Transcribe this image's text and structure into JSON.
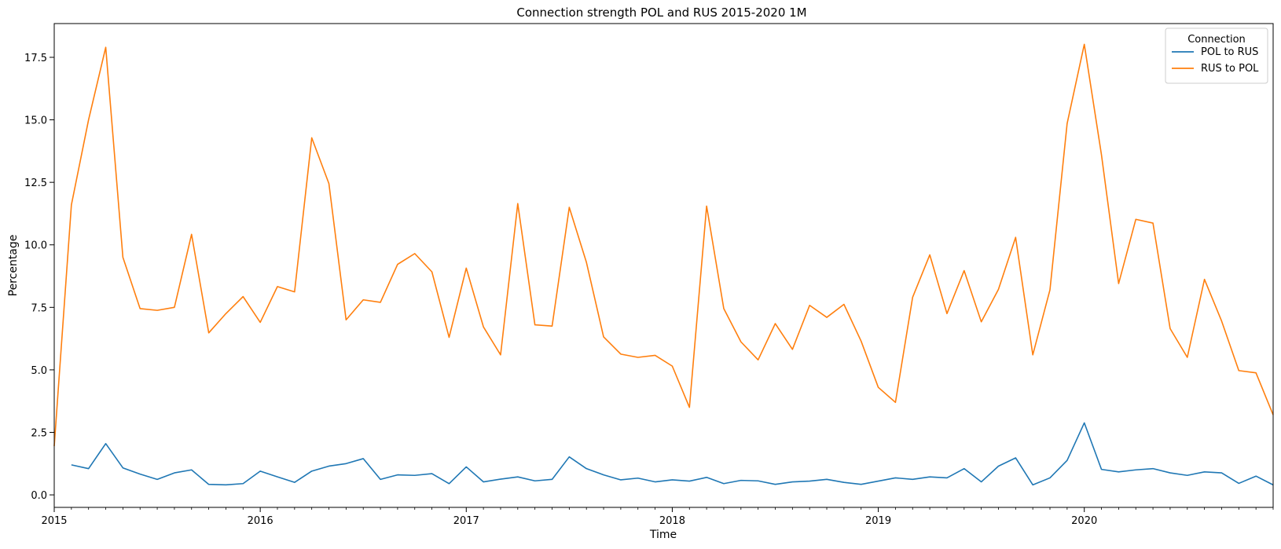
{
  "chart_data": {
    "type": "line",
    "title": "Connection strength POL and RUS 2015-2020 1M",
    "xlabel": "Time",
    "ylabel": "Percentage",
    "x_range": [
      "2015-01",
      "2020-12"
    ],
    "ylim": [
      -0.5,
      18.85
    ],
    "x_ticks": [
      "2015",
      "2016",
      "2017",
      "2018",
      "2019",
      "2020"
    ],
    "y_ticks": [
      0.0,
      2.5,
      5.0,
      7.5,
      10.0,
      12.5,
      15.0,
      17.5
    ],
    "y_tick_labels": [
      "0.0",
      "2.5",
      "5.0",
      "7.5",
      "10.0",
      "12.5",
      "15.0",
      "17.5"
    ],
    "grid": false,
    "legend": {
      "title": "Connection",
      "position": "top-right"
    },
    "x": [
      "2015-01",
      "2015-02",
      "2015-03",
      "2015-04",
      "2015-05",
      "2015-06",
      "2015-07",
      "2015-08",
      "2015-09",
      "2015-10",
      "2015-11",
      "2015-12",
      "2016-01",
      "2016-02",
      "2016-03",
      "2016-04",
      "2016-05",
      "2016-06",
      "2016-07",
      "2016-08",
      "2016-09",
      "2016-10",
      "2016-11",
      "2016-12",
      "2017-01",
      "2017-02",
      "2017-03",
      "2017-04",
      "2017-05",
      "2017-06",
      "2017-07",
      "2017-08",
      "2017-09",
      "2017-10",
      "2017-11",
      "2017-12",
      "2018-01",
      "2018-02",
      "2018-03",
      "2018-04",
      "2018-05",
      "2018-06",
      "2018-07",
      "2018-08",
      "2018-09",
      "2018-10",
      "2018-11",
      "2018-12",
      "2019-01",
      "2019-02",
      "2019-03",
      "2019-04",
      "2019-05",
      "2019-06",
      "2019-07",
      "2019-08",
      "2019-09",
      "2019-10",
      "2019-11",
      "2019-12",
      "2020-01",
      "2020-02",
      "2020-03",
      "2020-04",
      "2020-05",
      "2020-06",
      "2020-07",
      "2020-08",
      "2020-09",
      "2020-10",
      "2020-11",
      "2020-12"
    ],
    "series": [
      {
        "name": "POL to RUS",
        "color": "#1f77b4",
        "values": [
          null,
          1.2,
          1.05,
          2.05,
          1.08,
          0.83,
          0.62,
          0.88,
          1.0,
          0.42,
          0.4,
          0.45,
          0.95,
          0.72,
          0.5,
          0.95,
          1.15,
          1.25,
          1.45,
          0.62,
          0.8,
          0.78,
          0.85,
          0.45,
          1.12,
          0.52,
          0.63,
          0.72,
          0.56,
          0.62,
          1.52,
          1.05,
          0.8,
          0.6,
          0.67,
          0.52,
          0.6,
          0.55,
          0.7,
          0.45,
          0.58,
          0.56,
          0.42,
          0.52,
          0.55,
          0.62,
          0.5,
          0.42,
          0.55,
          0.68,
          0.62,
          0.72,
          0.68,
          1.05,
          0.52,
          1.15,
          1.48,
          0.4,
          0.68,
          1.38,
          2.88,
          1.02,
          0.92,
          1.0,
          1.05,
          0.88,
          0.78,
          0.92,
          0.88,
          0.46,
          0.75,
          0.4
        ]
      },
      {
        "name": "RUS to POL",
        "color": "#ff7f0e",
        "values": [
          1.95,
          11.6,
          15.0,
          17.9,
          9.5,
          7.45,
          7.38,
          7.5,
          10.42,
          6.48,
          7.25,
          7.93,
          6.9,
          8.33,
          8.12,
          14.28,
          12.45,
          7.0,
          7.8,
          7.7,
          9.22,
          9.65,
          8.92,
          6.3,
          9.07,
          6.72,
          5.6,
          11.65,
          6.8,
          6.75,
          11.5,
          9.3,
          6.32,
          5.63,
          5.5,
          5.58,
          5.15,
          3.5,
          11.55,
          7.45,
          6.12,
          5.4,
          6.85,
          5.82,
          7.58,
          7.1,
          7.62,
          6.15,
          4.3,
          3.7,
          7.9,
          9.6,
          7.25,
          8.97,
          6.92,
          8.22,
          10.3,
          5.6,
          8.2,
          14.85,
          18.02,
          13.6,
          8.45,
          11.02,
          10.87,
          6.65,
          5.5,
          8.62,
          6.95,
          4.97,
          4.88,
          3.2
        ]
      }
    ]
  }
}
